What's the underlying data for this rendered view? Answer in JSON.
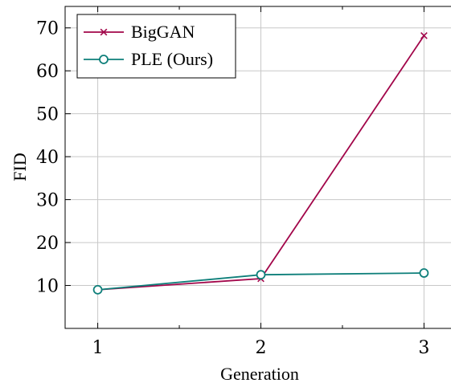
{
  "chart_data": {
    "type": "line",
    "xlabel": "Generation",
    "ylabel": "FID",
    "x": [
      1,
      2,
      3
    ],
    "xlim": [
      0.8,
      3.2
    ],
    "ylim": [
      0,
      75
    ],
    "xticks": [
      1,
      2,
      3
    ],
    "yticks": [
      10,
      20,
      30,
      40,
      50,
      60,
      70
    ],
    "grid": true,
    "legend_position": "top-left",
    "series": [
      {
        "name": "BigGAN",
        "values": [
          9.0,
          11.6,
          68.2
        ],
        "color": "#a2064a",
        "marker": "x"
      },
      {
        "name": "PLE (Ours)",
        "values": [
          9.0,
          12.5,
          12.9
        ],
        "color": "#0e7f7a",
        "marker": "circle"
      }
    ]
  }
}
